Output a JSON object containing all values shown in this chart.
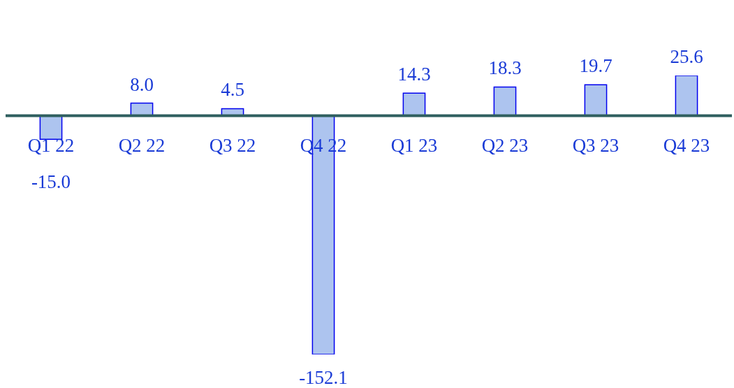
{
  "chart_data": {
    "type": "bar",
    "categories": [
      "Q1 22",
      "Q2 22",
      "Q3 22",
      "Q4 22",
      "Q1 23",
      "Q2 23",
      "Q3 23",
      "Q4 23"
    ],
    "values": [
      -15.0,
      8.0,
      4.5,
      -152.1,
      14.3,
      18.3,
      19.7,
      25.6
    ],
    "value_labels": [
      "-15.0",
      "8.0",
      "4.5",
      "-152.1",
      "14.3",
      "18.3",
      "19.7",
      "25.6"
    ],
    "color": "#adc4ef"
  }
}
